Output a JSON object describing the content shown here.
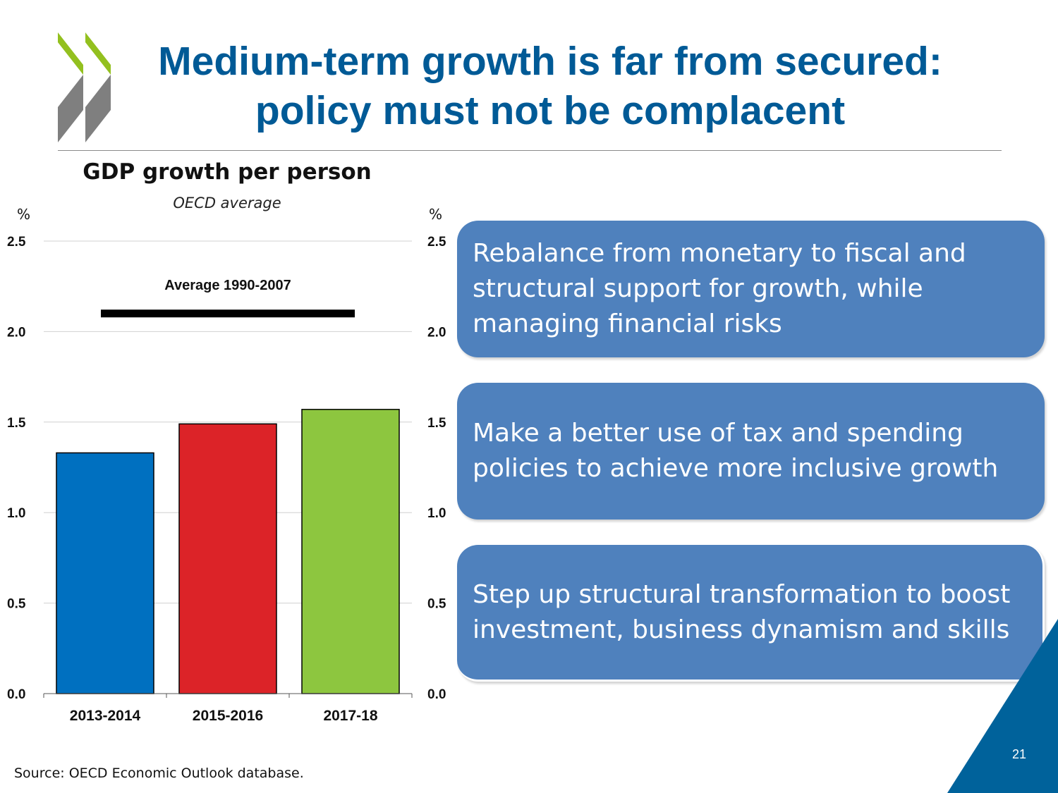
{
  "slide": {
    "title_line1": "Medium-term growth is far from secured:",
    "title_line2": "policy must not be complacent",
    "page_number": "21",
    "source": "Source: OECD Economic Outlook database.",
    "colors": {
      "title": "#005a96",
      "box": "#4f81bd",
      "accent": "#00629b",
      "logo_green": "#93c01f",
      "logo_grey": "#7f7f7f"
    }
  },
  "boxes": [
    {
      "text": "Rebalance from monetary to fiscal and structural support for growth, while managing financial risks"
    },
    {
      "text": "Make a better use of tax and spending policies to achieve more inclusive growth"
    },
    {
      "text": "Step up structural transformation to boost investment, business dynamism and skills"
    }
  ],
  "chart_data": {
    "type": "bar",
    "title": "GDP growth per person",
    "subtitle": "OECD average",
    "ylabel_left": "%",
    "ylabel_right": "%",
    "ylim": [
      0,
      2.5
    ],
    "yticks": [
      "0.0",
      "0.5",
      "1.0",
      "1.5",
      "2.0",
      "2.5"
    ],
    "categories": [
      "2013-2014",
      "2015-2016",
      "2017-18"
    ],
    "values": [
      1.33,
      1.49,
      1.57
    ],
    "bar_colors": [
      "#0070c0",
      "#dc2328",
      "#8dc63f"
    ],
    "reference_line": {
      "label": "Average 1990-2007",
      "value": 2.1
    },
    "grid": true
  }
}
